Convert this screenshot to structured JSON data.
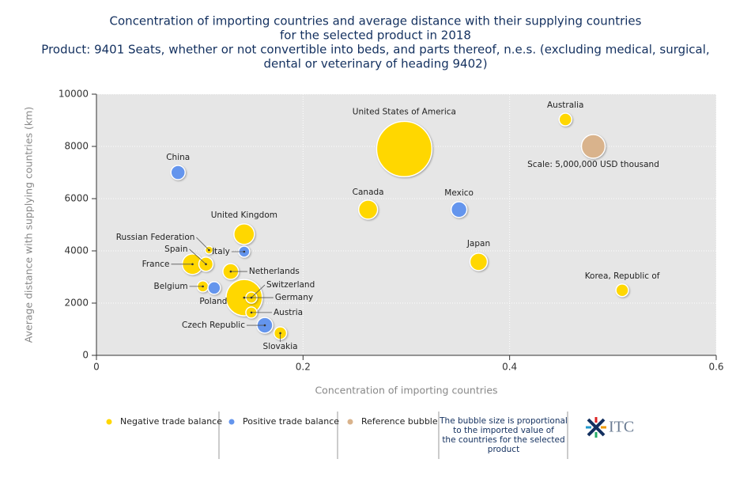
{
  "chart_data": {
    "type": "bubble",
    "title": [
      "Concentration of importing countries and average distance with their supplying countries",
      "for the selected product in 2018",
      "Product: 9401 Seats, whether or not convertible into beds, and parts thereof, n.e.s. (excluding medical, surgical,",
      "dental or veterinary of heading 9402)"
    ],
    "xlabel": "Concentration of importing countries",
    "ylabel": "Average distance with supplying countries (km)",
    "xlim": [
      0,
      0.6
    ],
    "xticks": [
      0,
      0.2,
      0.4,
      0.6
    ],
    "ylim": [
      0,
      10000
    ],
    "yticks": [
      0,
      2000,
      4000,
      6000,
      8000,
      10000
    ],
    "grid": true,
    "series": [
      {
        "name": "Negative trade balance",
        "color": "#ffd700",
        "labels": [
          "United States of America",
          "Germany",
          "Australia",
          "Canada",
          "United Kingdom",
          "France",
          "Spain",
          "Russian Federation",
          "Netherlands",
          "Japan",
          "Belgium",
          "Switzerland",
          "Austria",
          "Slovakia",
          "Korea, Republic of"
        ],
        "x": [
          0.298,
          0.143,
          0.454,
          0.263,
          0.143,
          0.093,
          0.106,
          0.109,
          0.13,
          0.37,
          0.103,
          0.15,
          0.15,
          0.178,
          0.509
        ],
        "values": [
          7900,
          2210,
          9030,
          5580,
          4640,
          3490,
          3490,
          4030,
          3210,
          3580,
          2640,
          2210,
          1640,
          850,
          2490
        ],
        "sizes": [
          27200000,
          11750000,
          1420000,
          3200000,
          3750000,
          3750000,
          1800000,
          550000,
          2200000,
          2700000,
          1100000,
          1100000,
          1100000,
          1400000,
          1400000
        ]
      },
      {
        "name": "Positive trade balance",
        "color": "#6495ed",
        "labels": [
          "China",
          "Mexico",
          "Italy",
          "Poland",
          "Czech Republic"
        ],
        "x": [
          0.079,
          0.351,
          0.143,
          0.114,
          0.163
        ],
        "values": [
          7000,
          5580,
          3970,
          2580,
          1150
        ],
        "sizes": [
          1800000,
          2200000,
          1100000,
          1400000,
          2200000
        ]
      },
      {
        "name": "Reference bubble",
        "color": "#d9b38c",
        "labels": [
          "Scale: 5,000,000 USD thousand"
        ],
        "x": [
          0.481
        ],
        "values": [
          8000
        ],
        "sizes": [
          5000000
        ]
      }
    ],
    "legend_note": [
      "The bubble size is proportional",
      "to the imported value of",
      "the countries for the selected",
      "product"
    ],
    "logo_text": "ITC"
  }
}
